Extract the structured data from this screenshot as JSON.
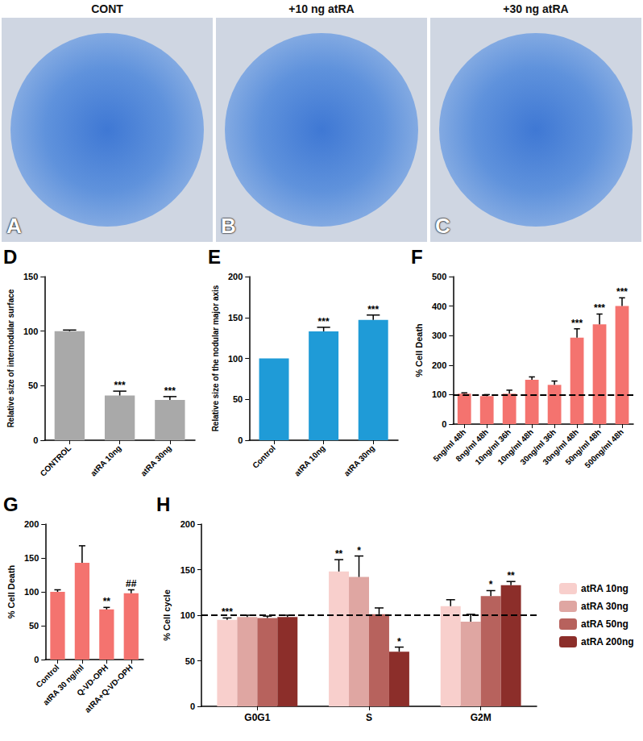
{
  "images": [
    {
      "panel": "A",
      "title": "CONT"
    },
    {
      "panel": "B",
      "title": "+10 ng atRA"
    },
    {
      "panel": "C",
      "title": "+30 ng atRA"
    }
  ],
  "chart_data": [
    {
      "type": "bar",
      "panel": "D",
      "ylabel": "Relative size of internodular surface",
      "categories": [
        "CONTROL",
        "atRA 10ng",
        "atRA 30ng"
      ],
      "values": [
        100,
        41,
        37
      ],
      "errors": [
        1,
        4,
        3
      ],
      "significance": [
        null,
        "***",
        "***"
      ],
      "color": "#a9a9a9",
      "ylim": [
        0,
        150
      ],
      "yticks": [
        0,
        50,
        100,
        150
      ],
      "grid": false
    },
    {
      "type": "bar",
      "panel": "E",
      "ylabel": "Relative size of the nodular major axis",
      "categories": [
        "Control",
        "atRA 10ng",
        "atRA 30ng"
      ],
      "values": [
        100,
        133,
        147
      ],
      "errors": [
        0,
        5,
        6
      ],
      "significance": [
        null,
        "***",
        "***"
      ],
      "color": "#1f9bd7",
      "ylim": [
        0,
        200
      ],
      "yticks": [
        0,
        50,
        100,
        150,
        200
      ],
      "grid": false
    },
    {
      "type": "bar",
      "panel": "F",
      "ylabel": "% Cell Death",
      "categories": [
        "5ng/ml 48h",
        "8ng/ml 48h",
        "10ng/ml 36h",
        "10ng/ml 48h",
        "30ng/ml 36h",
        "30ng/ml 48h",
        "50ng/ml 48h",
        "500ng/ml 48h"
      ],
      "values": [
        103,
        95,
        103,
        150,
        133,
        293,
        338,
        400
      ],
      "errors": [
        3,
        5,
        12,
        10,
        13,
        30,
        35,
        28
      ],
      "significance": [
        null,
        null,
        null,
        null,
        null,
        "***",
        "***",
        "***"
      ],
      "color": "#f4736f",
      "reference": 100,
      "ylim": [
        0,
        500
      ],
      "yticks": [
        0,
        100,
        200,
        300,
        400,
        500
      ],
      "grid": false
    },
    {
      "type": "bar",
      "panel": "G",
      "ylabel": "% Cell Death",
      "categories": [
        "Control",
        "atRA 30 ng/ml",
        "Q-VD-OPH",
        "atRA+Q-VD-OPH"
      ],
      "values": [
        100,
        143,
        74,
        98
      ],
      "errors": [
        3,
        25,
        3,
        5
      ],
      "significance": [
        null,
        null,
        "**",
        "##"
      ],
      "color": "#f4736f",
      "ylim": [
        0,
        200
      ],
      "yticks": [
        0,
        50,
        100,
        150,
        200
      ],
      "grid": false
    },
    {
      "type": "bar",
      "panel": "H",
      "ylabel": "% Cell cycle",
      "categories": [
        "G0G1",
        "S",
        "G2M"
      ],
      "series": [
        {
          "name": "atRA 10ng",
          "color": "#f8cfcc",
          "values": [
            95,
            148,
            110
          ],
          "errors": [
            2,
            13,
            7
          ],
          "significance": [
            "***",
            "**",
            null
          ]
        },
        {
          "name": "atRA 30ng",
          "color": "#dfa6a2",
          "values": [
            98,
            142,
            93
          ],
          "errors": [
            2,
            23,
            8
          ],
          "significance": [
            null,
            "*",
            null
          ]
        },
        {
          "name": "atRA 50ng",
          "color": "#b7625d",
          "values": [
            97,
            101,
            121
          ],
          "errors": [
            2,
            7,
            6
          ],
          "significance": [
            null,
            null,
            "*"
          ]
        },
        {
          "name": "atRA 200ng",
          "color": "#8c2e2a",
          "values": [
            98,
            60,
            133
          ],
          "errors": [
            2,
            5,
            4
          ],
          "significance": [
            null,
            "*",
            "**"
          ]
        }
      ],
      "reference": 100,
      "legend": "right",
      "ylim": [
        0,
        200
      ],
      "yticks": [
        0,
        50,
        100,
        150,
        200
      ],
      "grid": false
    }
  ]
}
